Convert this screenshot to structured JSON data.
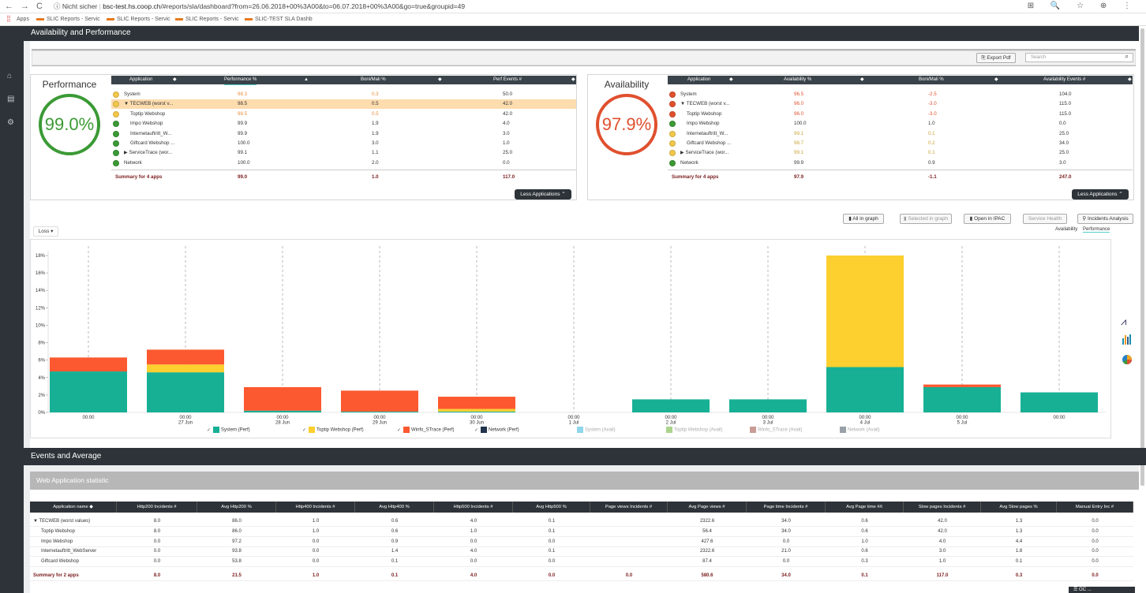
{
  "browser": {
    "nav_back": "←",
    "nav_fwd": "→",
    "reload": "C",
    "security": "ⓘ Nicht sicher",
    "host": "bsc-test.hs.coop.ch",
    "path": "/#reports/sla/dashboard?from=26.06.2018+00%3A00&to=06.07.2018+00%3A00&go=true&groupid=49",
    "right_icons": "⊞ 🔍 ☆ ⊕ ⋮",
    "bookmarks": [
      "Apps",
      "SLIC Reports - Servic",
      "SLIC Reports - Servic",
      "SLIC Reports - Servic",
      "SLIC-TEST SLA Dashb"
    ]
  },
  "sidebar": {
    "icons": [
      "home-icon",
      "document-icon",
      "gear-icon"
    ],
    "glyphs": [
      "⌂",
      "▤",
      "⚙"
    ]
  },
  "header": {
    "title": "Availability and Performance"
  },
  "toolbar": {
    "export_pdf": "Export Pdf",
    "search_placeholder": "Search",
    "search_glyph": "⌕"
  },
  "performance": {
    "title": "Performance",
    "gauge_value": "99.0%",
    "gauge_color": "#3b9a35",
    "columns": [
      "Application",
      "Performance %",
      "Boni/Mali %",
      "Perf Events #"
    ],
    "rows": [
      {
        "indent": 0,
        "prefix": "",
        "name": "System",
        "v1": "98.3",
        "v2": "0.3",
        "v3": "50.0",
        "dot": "#f2c84b",
        "color": "#e58c3b",
        "hl": false
      },
      {
        "indent": 1,
        "prefix": "▼",
        "name": "TECWEB (worst v...",
        "v1": "98.5",
        "v2": "0.5",
        "v3": "42.0",
        "dot": "#f2c84b",
        "color": "#333",
        "hl": true
      },
      {
        "indent": 2,
        "prefix": "",
        "name": "Toptip Webshop",
        "v1": "98.5",
        "v2": "0.5",
        "v3": "42.0",
        "dot": "#f2c84b",
        "color": "#e58c3b",
        "hl": false
      },
      {
        "indent": 2,
        "prefix": "",
        "name": "Impo Webshop",
        "v1": "99.9",
        "v2": "1.9",
        "v3": "4.0",
        "dot": "#3b9a35",
        "color": "#333",
        "hl": false
      },
      {
        "indent": 2,
        "prefix": "",
        "name": "Internetauftritt_W...",
        "v1": "99.9",
        "v2": "1.9",
        "v3": "3.0",
        "dot": "#3b9a35",
        "color": "#333",
        "hl": false
      },
      {
        "indent": 2,
        "prefix": "",
        "name": "Giftcard Webshop ...",
        "v1": "100.0",
        "v2": "3.0",
        "v3": "1.0",
        "dot": "#3b9a35",
        "color": "#333",
        "hl": false
      },
      {
        "indent": 1,
        "prefix": "▶",
        "name": "ServiceTrace (wor...",
        "v1": "99.1",
        "v2": "1.1",
        "v3": "25.0",
        "dot": "#3b9a35",
        "color": "#333",
        "hl": false
      },
      {
        "indent": 0,
        "prefix": "",
        "name": "Network",
        "v1": "100.0",
        "v2": "2.0",
        "v3": "0.0",
        "dot": "#3b9a35",
        "color": "#333",
        "hl": false
      }
    ],
    "summary": {
      "label": "Summary for 4 apps",
      "v1": "99.0",
      "v2": "1.0",
      "v3": "117.0"
    },
    "less_btn": "Less Applications ⌃"
  },
  "availability": {
    "title": "Availability",
    "gauge_value": "97.9%",
    "gauge_color": "#e0502e",
    "columns": [
      "Application",
      "Availability %",
      "Boni/Mali %",
      "Availability Events #"
    ],
    "rows": [
      {
        "indent": 0,
        "prefix": "",
        "name": "System",
        "v1": "96.5",
        "v2": "-2.5",
        "v3": "104.0",
        "dot": "#e0502e",
        "color": "#e0502e",
        "hl": false
      },
      {
        "indent": 1,
        "prefix": "▼",
        "name": "TECWEB (worst v...",
        "v1": "96.0",
        "v2": "-3.0",
        "v3": "115.0",
        "dot": "#e0502e",
        "color": "#e0502e",
        "hl": false
      },
      {
        "indent": 2,
        "prefix": "",
        "name": "Toptip Webshop",
        "v1": "96.0",
        "v2": "-3.0",
        "v3": "115.0",
        "dot": "#e0502e",
        "color": "#e0502e",
        "hl": false
      },
      {
        "indent": 2,
        "prefix": "",
        "name": "Impo Webshop",
        "v1": "100.0",
        "v2": "1.0",
        "v3": "0.0",
        "dot": "#3b9a35",
        "color": "#333",
        "hl": false
      },
      {
        "indent": 2,
        "prefix": "",
        "name": "Internetauftritt_W...",
        "v1": "99.1",
        "v2": "0.1",
        "v3": "25.0",
        "dot": "#f2c84b",
        "color": "#c9a437",
        "hl": false
      },
      {
        "indent": 2,
        "prefix": "",
        "name": "Giftcard Webshop ...",
        "v1": "98.7",
        "v2": "0.2",
        "v3": "34.0",
        "dot": "#f2c84b",
        "color": "#c9a437",
        "hl": false
      },
      {
        "indent": 1,
        "prefix": "▶",
        "name": "ServiceTrace (wor...",
        "v1": "99.1",
        "v2": "0.1",
        "v3": "25.0",
        "dot": "#f2c84b",
        "color": "#c9a437",
        "hl": false
      },
      {
        "indent": 0,
        "prefix": "",
        "name": "Network",
        "v1": "99.9",
        "v2": "0.9",
        "v3": "3.0",
        "dot": "#3b9a35",
        "color": "#333",
        "hl": false
      }
    ],
    "summary": {
      "label": "Summary for 4 apps",
      "v1": "97.9",
      "v2": "-1.1",
      "v3": "247.0"
    },
    "less_btn": "Less Applications ⌃"
  },
  "chart_buttons": {
    "all_in_graph": "All in graph",
    "selected_in_graph": "Selected in graph",
    "open_in_ipac": "Open in IPAC",
    "service_health": "Service Health",
    "incidents_analysis": "Incidents Analysis"
  },
  "view_tabs": {
    "availability": "Availability",
    "performance": "Performance"
  },
  "loss_dropdown": "Loss",
  "chart_data": {
    "type": "bar",
    "stacked": true,
    "ylim": [
      0,
      18
    ],
    "yticks": [
      "0%",
      "2%",
      "4%",
      "6%",
      "8%",
      "10%",
      "12%",
      "14%",
      "16%",
      "18%"
    ],
    "categories": [
      "00:00",
      "00:00\n27 Jun",
      "00:00\n28 Jun",
      "00:00\n29 Jun",
      "00:00\n30 Jun",
      "00:00\n1 Jul",
      "00:00\n2 Jul",
      "00:00\n3 Jul",
      "00:00\n4 Jul",
      "00:00\n5 Jul",
      "00:00"
    ],
    "series": [
      {
        "name": "System (Perf)",
        "color": "#17b095",
        "values": [
          4.7,
          4.6,
          0.2,
          0.1,
          0.1,
          0,
          1.5,
          1.5,
          5.2,
          2.9,
          2.3
        ]
      },
      {
        "name": "Toptip Webshop (Perf)",
        "color": "#fdcf2f",
        "values": [
          0,
          0.9,
          0,
          0,
          0.3,
          0,
          0,
          0,
          12.8,
          0,
          0
        ]
      },
      {
        "name": "Winfo_STrace (Perf)",
        "color": "#fc5930",
        "values": [
          1.6,
          1.7,
          2.7,
          2.4,
          1.4,
          0,
          0,
          0,
          0,
          0.3,
          0
        ]
      },
      {
        "name": "Network (Perf)",
        "color": "#22344d",
        "values": [
          0,
          0,
          0,
          0,
          0,
          0,
          0,
          0,
          0,
          0,
          0
        ]
      }
    ],
    "hidden_series": [
      {
        "name": "System (Avail)",
        "color": "#7bcfe6"
      },
      {
        "name": "Toptip Webshop (Avail)",
        "color": "#9ccb7a"
      },
      {
        "name": "Winfo_STrace (Avail)",
        "color": "#c08c84"
      },
      {
        "name": "Network (Avail)",
        "color": "#888f99"
      }
    ],
    "grid": false
  },
  "events": {
    "title": "Events and Average",
    "subtitle": "Web Application statistic",
    "columns": [
      "Application name",
      "Http200 Incidents #",
      "Avg Http200 %",
      "Http400 Incidents #",
      "Avg Http400 %",
      "Http500 Incidents #",
      "Avg Http500 %",
      "Page views Incidents #",
      "Avg Page views #",
      "Page time Incidents #",
      "Avg Page time #/t",
      "Slow pages Incidents #",
      "Avg Slow pages %",
      "Manual Entry Inc #"
    ],
    "rows": [
      [
        "▼ TECWEB (worst values)",
        "8.0",
        "86.0",
        "1.0",
        "0.6",
        "4.0",
        "0.1",
        "",
        "2322.6",
        "34.0",
        "0.6",
        "42.0",
        "1.3",
        "0.0"
      ],
      [
        "Toptip Webshop",
        "8.0",
        "86.0",
        "1.0",
        "0.6",
        "1.0",
        "0.1",
        "",
        "56.4",
        "34.0",
        "0.6",
        "42.0",
        "1.3",
        "0.0"
      ],
      [
        "Impo Webshop",
        "0.0",
        "97.2",
        "0.0",
        "0.9",
        "0.0",
        "0.0",
        "",
        "427.6",
        "0.0",
        "1.0",
        "4.0",
        "4.4",
        "0.0"
      ],
      [
        "Internetauftritt_WebServer",
        "0.0",
        "93.8",
        "0.0",
        "1.4",
        "4.0",
        "0.1",
        "",
        "2322.6",
        "21.0",
        "0.6",
        "3.0",
        "1.8",
        "0.0"
      ],
      [
        "Giftcard Webshop",
        "0.0",
        "53.8",
        "0.0",
        "0.1",
        "0.0",
        "0.0",
        "",
        "87.4",
        "0.0",
        "0.3",
        "1.0",
        "0.1",
        "0.0"
      ]
    ],
    "summary": [
      "Summary for 2 apps",
      "8.0",
      "21.5",
      "1.0",
      "0.1",
      "4.0",
      "0.0",
      "0.0",
      "580.6",
      "34.0",
      "0.1",
      "117.0",
      "0.3",
      "0.0"
    ]
  },
  "right_icons": [
    "line-chart-icon",
    "bar-chart-icon",
    "pie-chart-icon"
  ],
  "bottom_tab": "☰ OC ..."
}
